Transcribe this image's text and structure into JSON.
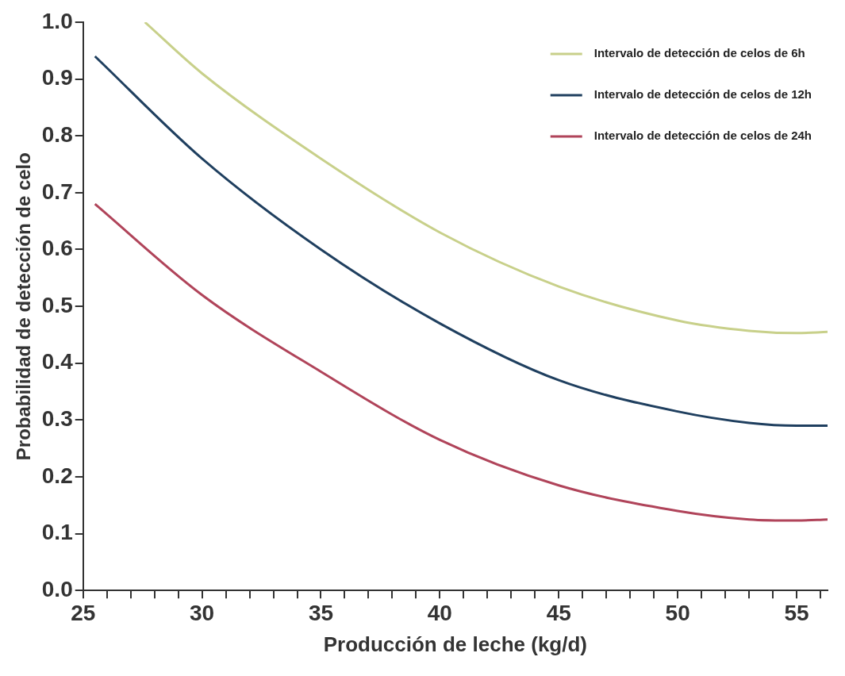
{
  "chart_data": {
    "type": "line",
    "xlabel": "Producción de leche (kg/d)",
    "ylabel": "Probabilidad de detección de celo",
    "xlim": [
      25,
      56.3
    ],
    "ylim": [
      0,
      1
    ],
    "xticks": [
      25,
      {
        "value": 26,
        "label": null
      },
      {
        "value": 27,
        "label": null
      },
      {
        "value": 28,
        "label": null
      },
      {
        "value": 29,
        "label": null
      },
      30,
      {
        "value": 31,
        "label": null
      },
      {
        "value": 32,
        "label": null
      },
      {
        "value": 33,
        "label": null
      },
      {
        "value": 34,
        "label": null
      },
      35,
      {
        "value": 36,
        "label": null
      },
      {
        "value": 37,
        "label": null
      },
      {
        "value": 38,
        "label": null
      },
      {
        "value": 39,
        "label": null
      },
      40,
      {
        "value": 41,
        "label": null
      },
      {
        "value": 42,
        "label": null
      },
      {
        "value": 43,
        "label": null
      },
      {
        "value": 44,
        "label": null
      },
      45,
      {
        "value": 46,
        "label": null
      },
      {
        "value": 47,
        "label": null
      },
      {
        "value": 48,
        "label": null
      },
      {
        "value": 49,
        "label": null
      },
      50,
      {
        "value": 51,
        "label": null
      },
      {
        "value": 52,
        "label": null
      },
      {
        "value": 53,
        "label": null
      },
      {
        "value": 54,
        "label": null
      },
      55,
      {
        "value": 56,
        "label": null
      }
    ],
    "yticks": [
      {
        "value": 0,
        "label": "0.0"
      },
      {
        "value": 0.1,
        "label": "0.1"
      },
      {
        "value": 0.2,
        "label": "0.2"
      },
      {
        "value": 0.3,
        "label": "0.3"
      },
      {
        "value": 0.4,
        "label": "0.4"
      },
      {
        "value": 0.5,
        "label": "0.5"
      },
      {
        "value": 0.6,
        "label": "0.6"
      },
      {
        "value": 0.7,
        "label": "0.7"
      },
      {
        "value": 0.8,
        "label": "0.8"
      },
      {
        "value": 0.9,
        "label": "0.9"
      },
      {
        "value": 1,
        "label": "1.0"
      }
    ],
    "grid": false,
    "legend": "top right",
    "marker": "none",
    "line_style": "solid",
    "series": [
      {
        "name": "Intervalo de detección de celos de 6h",
        "color": "#c8d08a",
        "x": [
          27.6,
          30,
          35,
          40,
          45,
          50,
          53,
          55,
          56.3
        ],
        "values": [
          1.0,
          0.91,
          0.76,
          0.63,
          0.535,
          0.475,
          0.457,
          0.453,
          0.455
        ]
      },
      {
        "name": "Intervalo de detección de celos de 12h",
        "color": "#1f3f5f",
        "x": [
          25.5,
          30,
          35,
          40,
          45,
          50,
          53,
          55,
          56.3
        ],
        "values": [
          0.94,
          0.76,
          0.6,
          0.47,
          0.37,
          0.315,
          0.295,
          0.29,
          0.29
        ]
      },
      {
        "name": "Intervalo de detección de celos de 24h",
        "color": "#b0445a",
        "x": [
          25.5,
          30,
          35,
          40,
          45,
          50,
          53,
          55,
          56.3
        ],
        "values": [
          0.68,
          0.52,
          0.385,
          0.265,
          0.185,
          0.14,
          0.125,
          0.123,
          0.125
        ]
      }
    ]
  }
}
